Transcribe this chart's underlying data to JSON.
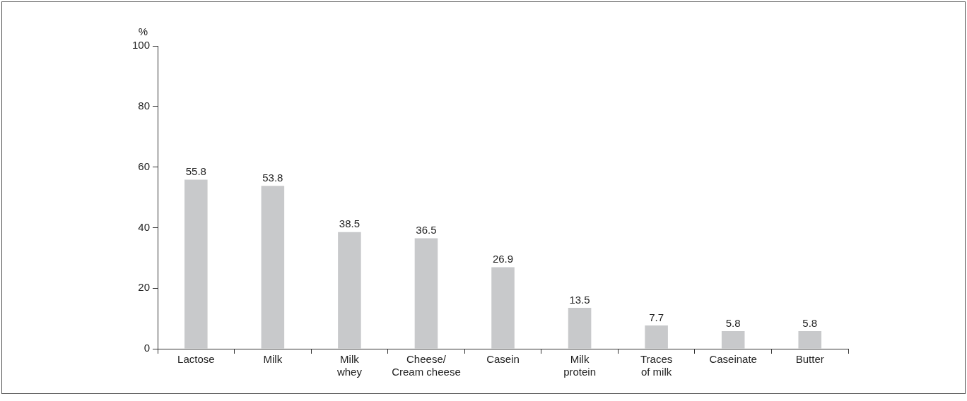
{
  "chart_data": {
    "type": "bar",
    "ylabel": "%",
    "categories": [
      "Lactose",
      "Milk",
      "Milk whey",
      "Cheese/ Cream cheese",
      "Casein",
      "Milk protein",
      "Traces of milk",
      "Caseinate",
      "Butter"
    ],
    "values": [
      55.8,
      53.8,
      38.5,
      36.5,
      26.9,
      13.5,
      7.7,
      5.8,
      5.8
    ],
    "color": "#c8c9cb",
    "ylim": [
      0,
      100
    ],
    "yticks": [
      0,
      20,
      40,
      60,
      80,
      100
    ],
    "grid": false,
    "legend": false,
    "data_labels": true
  }
}
